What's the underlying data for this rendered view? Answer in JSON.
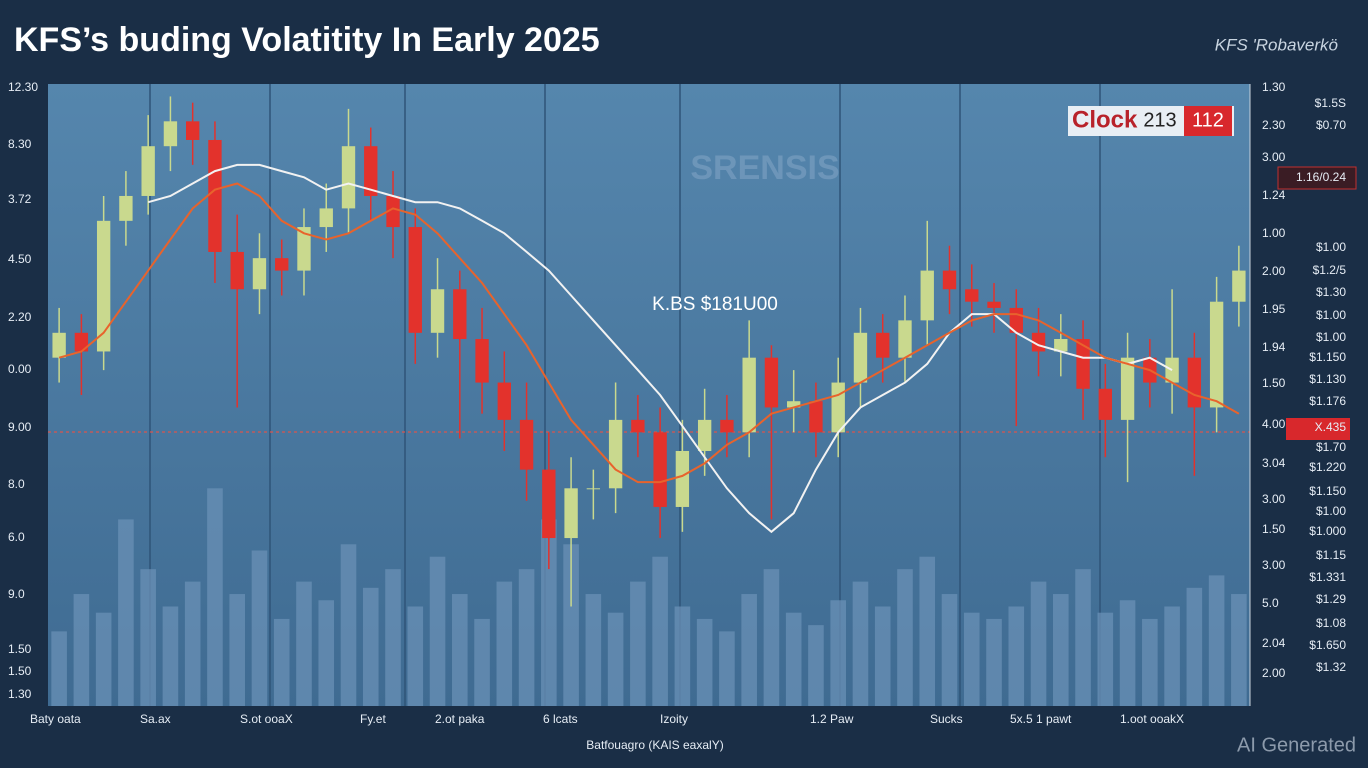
{
  "chart_data": {
    "type": "candlestick",
    "title": "KFS’s buding Volatitity In Early 2025",
    "brand": "KFS 'Robaverkö",
    "annotation": "K.BS $181U00",
    "badge": {
      "label": "Clock",
      "left": "213",
      "right": "112"
    },
    "watermark": "AI Generated",
    "faint_text": "SRENSIS",
    "x_axis_title": "Batfouagro (KAIS    eaxalY)",
    "x_labels": [
      "Baty oata",
      "Sa.ax",
      "S.ot ooaX",
      "Fy.et",
      "2.ot paka",
      "6 lcats",
      "Izoity",
      "1.2 Paw",
      "Sucks",
      "5x.5 1 pawt",
      "1.oot ooakX"
    ],
    "left_labels": [
      "12.30",
      "8.30",
      "3.72",
      "4.50",
      "2.20",
      "0.00",
      "9.00",
      "8.0",
      "6.0",
      "9.0",
      "1.50",
      "1.50",
      "1.30"
    ],
    "right_labels": [
      "1.30",
      "2.30",
      "3.00",
      "1.24",
      "1.00",
      "2.00",
      "1.95",
      "1.94",
      "1.50",
      "4.00",
      "3.04",
      "3.00",
      "1.50",
      "3.00",
      "5.0",
      "2.04",
      "2.00"
    ],
    "price_labels": [
      "$1.5S",
      "$0.70",
      "1.16/0.24",
      "$1.00",
      "$1.2/5",
      "$1.30",
      "$1.00",
      "$1.00",
      "$1.150",
      "$1.130",
      "$1.176",
      "X.435",
      "$1.70",
      "$1.220",
      "$1.150",
      "$1.00",
      "$1.000",
      "$1.15",
      "$1.331",
      "$1.29",
      "$1.08",
      "$1.650",
      "$1.32"
    ],
    "ylim": [
      0,
      100
    ],
    "up_color": "#c9d98e",
    "down_color": "#e3322c",
    "open": [
      56,
      60,
      57,
      78,
      82,
      90,
      94,
      91,
      73,
      67,
      72,
      70,
      77,
      80,
      90,
      82,
      77,
      60,
      67,
      59,
      52,
      46,
      38,
      27,
      35,
      35,
      46,
      44,
      32,
      41,
      46,
      44,
      56,
      48,
      49,
      44,
      52,
      60,
      56,
      62,
      70,
      67,
      65,
      64,
      60,
      57,
      59,
      51,
      46,
      56,
      52,
      56,
      48,
      65
    ],
    "high": [
      64,
      63,
      82,
      86,
      95,
      98,
      97,
      94,
      79,
      76,
      75,
      80,
      84,
      96,
      93,
      86,
      80,
      72,
      70,
      64,
      57,
      52,
      44,
      40,
      38,
      52,
      50,
      48,
      46,
      51,
      50,
      62,
      58,
      54,
      52,
      56,
      64,
      63,
      66,
      78,
      74,
      71,
      68,
      67,
      64,
      63,
      62,
      55,
      60,
      59,
      67,
      60,
      69,
      74
    ],
    "low": [
      52,
      50,
      54,
      74,
      79,
      86,
      87,
      68,
      48,
      63,
      66,
      66,
      73,
      76,
      78,
      72,
      55,
      56,
      43,
      47,
      41,
      33,
      22,
      16,
      30,
      31,
      40,
      27,
      28,
      37,
      40,
      40,
      30,
      44,
      40,
      40,
      48,
      52,
      52,
      58,
      63,
      61,
      60,
      45,
      53,
      53,
      46,
      40,
      36,
      48,
      47,
      37,
      44,
      61
    ],
    "close": [
      60,
      57,
      78,
      82,
      90,
      94,
      91,
      73,
      67,
      72,
      70,
      77,
      80,
      90,
      82,
      77,
      60,
      67,
      59,
      52,
      46,
      38,
      27,
      35,
      35,
      46,
      44,
      32,
      41,
      46,
      44,
      56,
      48,
      49,
      44,
      52,
      60,
      56,
      62,
      70,
      67,
      65,
      64,
      60,
      57,
      59,
      51,
      46,
      56,
      52,
      56,
      48,
      65,
      70
    ],
    "volume": [
      12,
      18,
      15,
      30,
      22,
      16,
      20,
      35,
      18,
      25,
      14,
      20,
      17,
      26,
      19,
      22,
      16,
      24,
      18,
      14,
      20,
      22,
      30,
      26,
      18,
      15,
      20,
      24,
      16,
      14,
      12,
      18,
      22,
      15,
      13,
      17,
      20,
      16,
      22,
      24,
      18,
      15,
      14,
      16,
      20,
      18,
      22,
      15,
      17,
      14,
      16,
      19,
      21,
      18
    ],
    "volume_color": "#6a90b6",
    "series": [
      {
        "color": "#f2f2f2",
        "values": [
          null,
          null,
          null,
          null,
          81,
          82,
          84,
          86,
          87,
          87,
          86,
          85,
          83,
          84,
          83,
          82,
          81,
          81,
          80,
          78,
          76,
          73,
          70,
          66,
          62,
          58,
          54,
          50,
          45,
          40,
          35,
          31,
          28,
          31,
          38,
          44,
          48,
          50,
          52,
          55,
          60,
          63,
          63,
          60,
          58,
          57,
          56,
          56,
          55,
          56,
          54,
          null,
          null,
          null
        ]
      },
      {
        "color": "#e8632c",
        "values": [
          56,
          57,
          60,
          65,
          70,
          75,
          80,
          83,
          84,
          82,
          78,
          76,
          75,
          76,
          78,
          80,
          79,
          76,
          72,
          68,
          63,
          58,
          52,
          46,
          42,
          38,
          36,
          36,
          37,
          39,
          42,
          44,
          47,
          48,
          49,
          50,
          52,
          54,
          56,
          58,
          60,
          62,
          63,
          63,
          62,
          60,
          58,
          56,
          55,
          54,
          52,
          50,
          49,
          47
        ]
      }
    ]
  }
}
